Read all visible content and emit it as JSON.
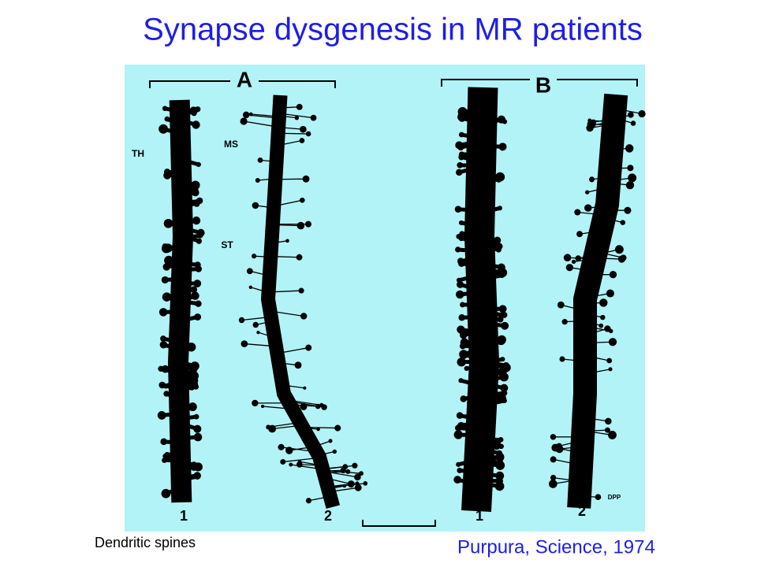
{
  "title": "Synapse dysgenesis in MR patients",
  "figure": {
    "panel_labels": [
      "A",
      "B"
    ],
    "annotations": [
      "TH",
      "MS",
      "ST"
    ],
    "dendrite_labels": [
      "1",
      "2",
      "1",
      "2"
    ],
    "initials": "DPP"
  },
  "caption": "Dendritic spines",
  "citation": "Purpura, Science, 1974"
}
